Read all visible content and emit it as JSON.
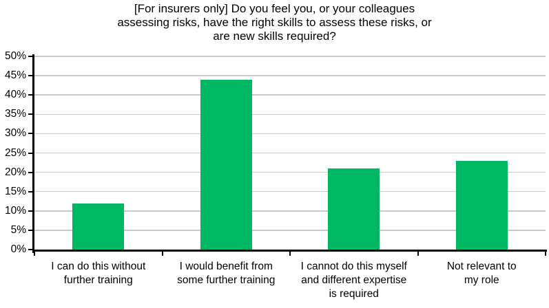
{
  "chart_data": {
    "type": "bar",
    "title": "[For insurers only] Do you feel you, or your colleagues assessing risks, have the right skills to assess these risks, or are new skills required?",
    "title_lines": [
      "[For insurers only] Do you feel you, or your colleagues",
      "assessing risks, have the right skills to assess these risks, or",
      "are new skills required?"
    ],
    "categories": [
      "I can do this without further training",
      "I would benefit from some further training",
      "I cannot do this myself and different expertise is required",
      "Not relevant to my role"
    ],
    "categories_wrapped": [
      [
        "I can do this without",
        "further training"
      ],
      [
        "I would benefit from",
        "some further training"
      ],
      [
        "I cannot do this myself",
        "and different expertise",
        "is required"
      ],
      [
        "Not relevant to",
        "my role"
      ]
    ],
    "values": [
      12,
      44,
      21,
      23
    ],
    "value_unit": "%",
    "xlabel": "",
    "ylabel": "",
    "ylim": [
      0,
      50
    ],
    "ytick_step": 5,
    "ytick_labels": [
      "0%",
      "5%",
      "10%",
      "15%",
      "20%",
      "25%",
      "30%",
      "35%",
      "40%",
      "45%",
      "50%"
    ],
    "grid": "horizontal",
    "legend_position": "none",
    "colors": {
      "bar": "#00b863",
      "gridline": "#c9c9c9",
      "axis": "#000000",
      "text": "#000000",
      "background": "#ffffff"
    }
  }
}
